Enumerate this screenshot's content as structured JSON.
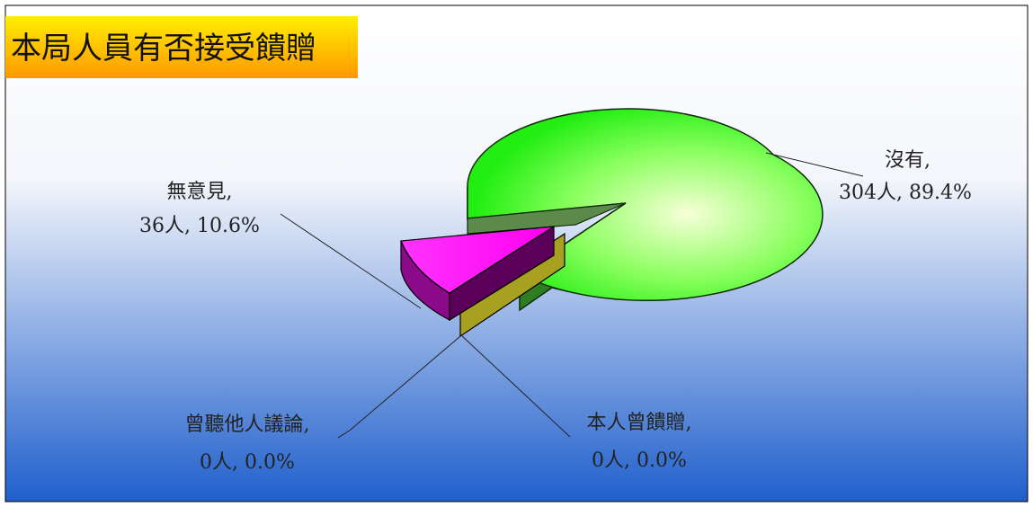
{
  "chart_data": {
    "type": "pie",
    "title": "本局人員有否接受饋贈",
    "slices": [
      {
        "label": "沒有",
        "count_label": "304人",
        "value": 89.4,
        "value_label": "89.4%",
        "color": "#33ee22"
      },
      {
        "label": "本人曾饋贈",
        "count_label": "0人",
        "value": 0.0,
        "value_label": "0.0%",
        "color": "#a8a020"
      },
      {
        "label": "曾聽他人議論",
        "count_label": "0人",
        "value": 0.0,
        "value_label": "0.0%",
        "color": "#2e8b8b"
      },
      {
        "label": "無意見",
        "count_label": "36人",
        "value": 10.6,
        "value_label": "10.6%",
        "color": "#ff22ff"
      }
    ],
    "legend": "none",
    "style": "3d-exploded"
  },
  "colors": {
    "title_bg_top": "#ffee00",
    "title_bg_bottom": "#ff9900",
    "plot_bg_top": "#ffffff",
    "plot_bg_bottom": "#1f5fcc"
  }
}
